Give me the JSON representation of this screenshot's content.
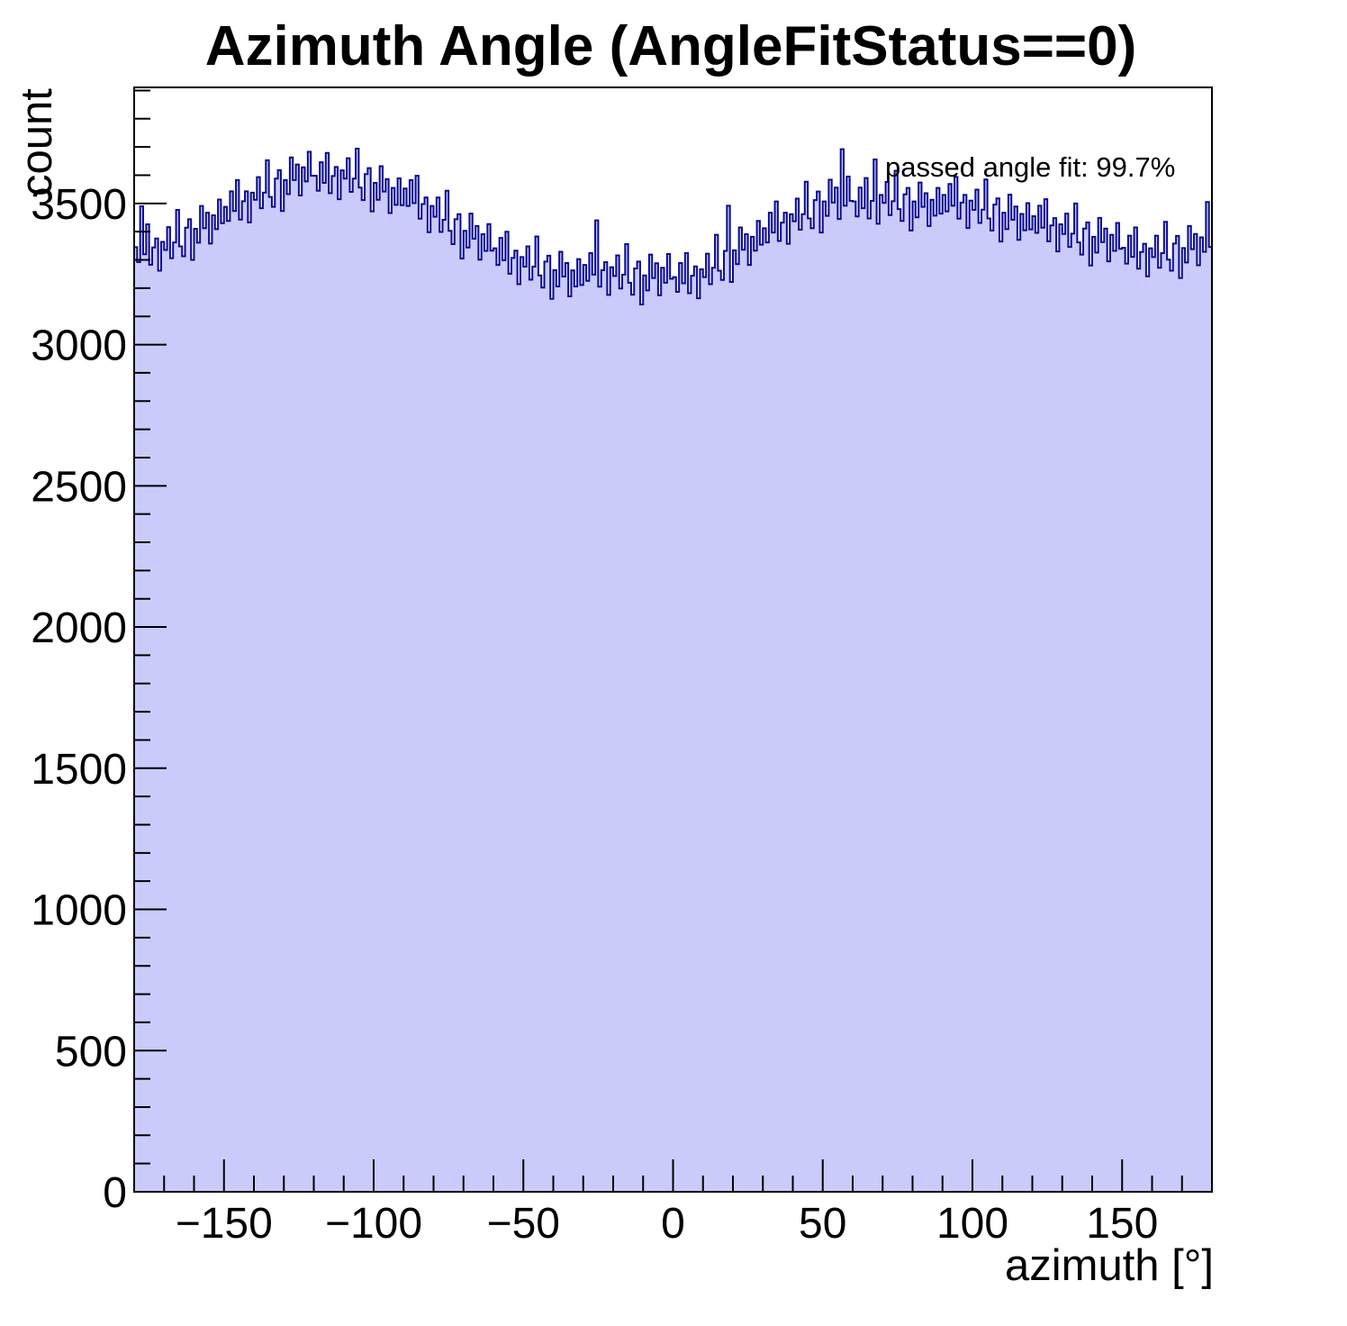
{
  "chart": {
    "style": {
      "fill_color": "#cbcbfb",
      "line_color": "#0b0b8f",
      "frame_color": "#000000",
      "text_color": "#000000",
      "background": "#ffffff"
    }
  },
  "chart_data": {
    "type": "bar",
    "title": "Azimuth Angle (AngleFitStatus==0)",
    "xlabel": "azimuth [°]",
    "ylabel": "count",
    "annotation": "passed angle fit: 99.7%",
    "xlim": [
      -180,
      180
    ],
    "ylim": [
      0,
      3911
    ],
    "x_start": -180,
    "bin_width": 1,
    "grid": false,
    "legend": "none",
    "x_major_ticks": [
      -150,
      -100,
      -50,
      0,
      50,
      100,
      150
    ],
    "x_tick_labels": [
      "−150",
      "−100",
      "−50",
      "0",
      "50",
      "100",
      "150"
    ],
    "x_minor_step": 10,
    "y_major_ticks": [
      0,
      500,
      1000,
      1500,
      2000,
      2500,
      3000,
      3500
    ],
    "y_tick_labels": [
      "0",
      "500",
      "1000",
      "1500",
      "2000",
      "2500",
      "3000",
      "3500"
    ],
    "y_minor_step": 100,
    "values": [
      3345,
      3292,
      3490,
      3320,
      3426,
      3283,
      3344,
      3376,
      3262,
      3364,
      3335,
      3416,
      3306,
      3362,
      3477,
      3348,
      3313,
      3414,
      3444,
      3300,
      3410,
      3361,
      3491,
      3412,
      3467,
      3358,
      3458,
      3409,
      3514,
      3430,
      3488,
      3438,
      3543,
      3473,
      3583,
      3443,
      3508,
      3543,
      3433,
      3538,
      3513,
      3593,
      3483,
      3538,
      3653,
      3523,
      3488,
      3588,
      3618,
      3473,
      3583,
      3533,
      3663,
      3583,
      3638,
      3528,
      3628,
      3578,
      3683,
      3598,
      3598,
      3545,
      3646,
      3573,
      3679,
      3536,
      3597,
      3629,
      3515,
      3617,
      3588,
      3660,
      3541,
      3588,
      3694,
      3556,
      3512,
      3604,
      3625,
      3472,
      3573,
      3513,
      3632,
      3542,
      3586,
      3466,
      3555,
      3495,
      3589,
      3494,
      3553,
      3491,
      3583,
      3501,
      3598,
      3446,
      3498,
      3521,
      3398,
      3491,
      3453,
      3521,
      3399,
      3442,
      3545,
      3403,
      3356,
      3444,
      3462,
      3305,
      3403,
      3344,
      3464,
      3375,
      3420,
      3301,
      3391,
      3332,
      3427,
      3333,
      3341,
      3282,
      3378,
      3299,
      3400,
      3251,
      3307,
      3333,
      3214,
      3310,
      3276,
      3348,
      3230,
      3276,
      3383,
      3245,
      3202,
      3294,
      3315,
      3162,
      3264,
      3206,
      3329,
      3241,
      3289,
      3171,
      3263,
      3206,
      3303,
      3211,
      3282,
      3226,
      3324,
      3248,
      3440,
      3205,
      3264,
      3292,
      3176,
      3274,
      3243,
      3316,
      3199,
      3248,
      3356,
      3219,
      3177,
      3270,
      3294,
      3142,
      3245,
      3192,
      3319,
      3236,
      3288,
      3175,
      3272,
      3219,
      3321,
      3233,
      3239,
      3187,
      3289,
      3217,
      3324,
      3182,
      3244,
      3277,
      3164,
      3267,
      3239,
      3322,
      3214,
      3272,
      3389,
      3262,
      3229,
      3332,
      3492,
      3222,
      3334,
      3285,
      3415,
      3336,
      3391,
      3282,
      3382,
      3333,
      3438,
      3354,
      3412,
      3362,
      3467,
      3397,
      3507,
      3367,
      3432,
      3467,
      3357,
      3462,
      3437,
      3517,
      3407,
      3462,
      3577,
      3447,
      3412,
      3512,
      3542,
      3397,
      3507,
      3456,
      3584,
      3503,
      3556,
      3445,
      3692,
      3492,
      3595,
      3509,
      3507,
      3454,
      3556,
      3483,
      3590,
      3447,
      3509,
      3656,
      3428,
      3530,
      3502,
      3576,
      3459,
      3508,
      3616,
      3480,
      3438,
      3532,
      3555,
      3404,
      3507,
      3451,
      3574,
      3488,
      3536,
      3420,
      3513,
      3457,
      3555,
      3464,
      3530,
      3472,
      3569,
      3492,
      3594,
      3446,
      3503,
      3530,
      3413,
      3510,
      3477,
      3549,
      3431,
      3478,
      3585,
      3447,
      3404,
      3496,
      3518,
      3365,
      3467,
      3409,
      3531,
      3442,
      3489,
      3371,
      3463,
      3405,
      3501,
      3408,
      3455,
      3396,
      3492,
      3414,
      3515,
      3366,
      3422,
      3448,
      3330,
      3426,
      3392,
      3464,
      3346,
      3393,
      3500,
      3362,
      3319,
      3411,
      3433,
      3280,
      3382,
      3326,
      3449,
      3363,
      3411,
      3295,
      3389,
      3332,
      3431,
      3339,
      3343,
      3287,
      3386,
      3311,
      3415,
      3269,
      3328,
      3357,
      3242,
      3341,
      3310,
      3386,
      3272,
      3324,
      3435,
      3301,
      3262,
      3358,
      3385,
      3236,
      3342,
      3291,
      3420,
      3338,
      3392,
      3281,
      3380,
      3329,
      3505,
      3346
    ]
  }
}
